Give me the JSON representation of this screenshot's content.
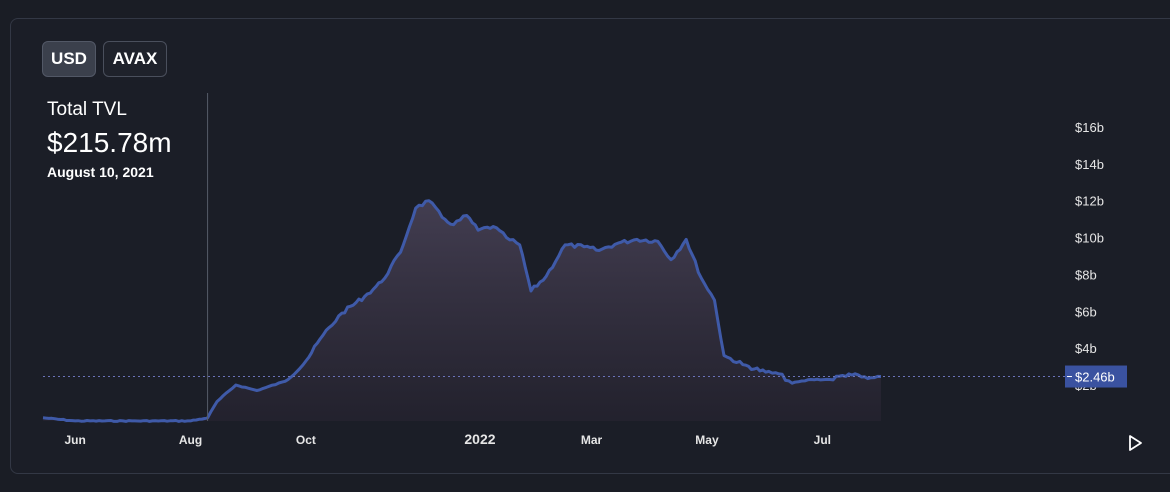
{
  "toggles": {
    "usd": "USD",
    "avax": "AVAX"
  },
  "header": {
    "label": "Total TVL",
    "value": "$215.78m",
    "date": "August 10, 2021"
  },
  "current_value_label": "$2.46b",
  "colors": {
    "line": "#3f5aa8",
    "badge": "#3a52a0",
    "background": "#1b1e27"
  },
  "icons": {
    "play": "play-icon"
  },
  "chart_data": {
    "type": "area",
    "x_tick_labels": [
      "Jun",
      "Aug",
      "Oct",
      "2022",
      "Mar",
      "May",
      "Jul"
    ],
    "y_tick_labels": [
      "$2b",
      "$4b",
      "$6b",
      "$8b",
      "$10b",
      "$12b",
      "$14b",
      "$16b"
    ],
    "ylim": [
      0,
      17
    ],
    "unit": "$b",
    "grid": false,
    "current_value": 2.46,
    "crosshair_date": "2021-08-10",
    "series": [
      {
        "x": [
          "2021-05-15",
          "2021-06-01",
          "2021-07-01",
          "2021-08-01",
          "2021-08-10",
          "2021-08-15",
          "2021-08-25",
          "2021-09-05",
          "2021-09-20",
          "2021-10-01",
          "2021-10-10",
          "2021-10-20",
          "2021-11-01",
          "2021-11-10",
          "2021-11-20",
          "2021-11-28",
          "2021-12-05",
          "2021-12-12",
          "2021-12-18",
          "2021-12-25",
          "2021-12-31",
          "2022-01-08",
          "2022-01-15",
          "2022-01-22",
          "2022-01-28",
          "2022-02-05",
          "2022-02-15",
          "2022-02-25",
          "2022-03-05",
          "2022-03-15",
          "2022-03-25",
          "2022-04-05",
          "2022-04-12",
          "2022-04-20",
          "2022-04-28",
          "2022-05-05",
          "2022-05-10",
          "2022-05-20",
          "2022-06-01",
          "2022-06-08",
          "2022-06-15",
          "2022-06-25",
          "2022-07-05",
          "2022-07-15",
          "2022-07-25",
          "2022-08-01"
        ],
        "y": [
          0.22,
          0.05,
          0.05,
          0.05,
          0.22,
          1.1,
          2.0,
          1.7,
          2.2,
          3.3,
          4.7,
          5.9,
          6.8,
          7.6,
          9.2,
          11.6,
          12.0,
          11.1,
          10.7,
          11.2,
          10.4,
          10.6,
          10.0,
          9.6,
          7.1,
          7.9,
          9.6,
          9.5,
          9.3,
          9.7,
          9.9,
          9.8,
          8.8,
          9.9,
          7.8,
          6.6,
          3.6,
          3.1,
          2.7,
          2.6,
          2.1,
          2.3,
          2.3,
          2.6,
          2.35,
          2.46
        ]
      }
    ]
  }
}
